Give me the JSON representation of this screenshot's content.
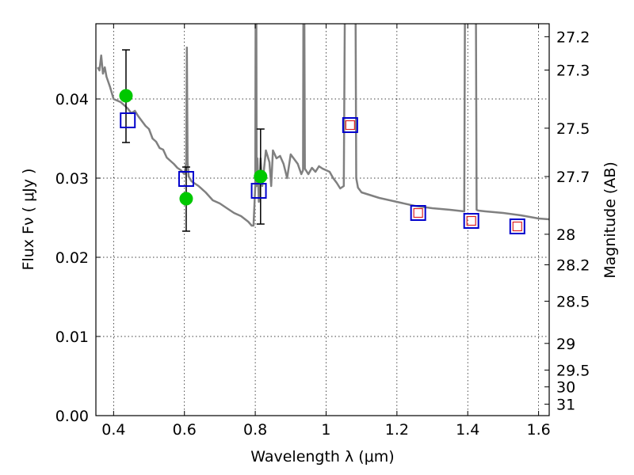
{
  "chart_data": {
    "type": "line",
    "xlabel": "Wavelength  λ (μm)",
    "ylabel": "Flux  Fν  ( μJy )",
    "y2label": "Magnitude (AB)",
    "xlim": [
      0.35,
      1.63
    ],
    "ylim": [
      0.0,
      0.0495
    ],
    "grid": true,
    "x_ticks": [
      0.4,
      0.6,
      0.8,
      1.0,
      1.2,
      1.4,
      1.6
    ],
    "x_tick_labels": [
      "0.4",
      "0.6",
      "0.8",
      "1",
      "1.2",
      "1.4",
      "1.6"
    ],
    "y_ticks": [
      0.0,
      0.01,
      0.02,
      0.03,
      0.04
    ],
    "y_tick_labels": [
      "0.00",
      "0.01",
      "0.02",
      "0.03",
      "0.04"
    ],
    "y2_ticks": [
      {
        "mag": 27.2,
        "label": "27.2"
      },
      {
        "mag": 27.3,
        "label": "27.3"
      },
      {
        "mag": 27.5,
        "label": "27.5"
      },
      {
        "mag": 27.7,
        "label": "27.7"
      },
      {
        "mag": 28.0,
        "label": "28"
      },
      {
        "mag": 28.2,
        "label": "28.2"
      },
      {
        "mag": 28.5,
        "label": "28.5"
      },
      {
        "mag": 29.0,
        "label": "29"
      },
      {
        "mag": 29.5,
        "label": "29.5"
      },
      {
        "mag": 30.0,
        "label": "30"
      },
      {
        "mag": 31.0,
        "label": "31"
      }
    ],
    "colors": {
      "spectrum": "#808080",
      "observed": "#00c800",
      "model": "#0000cc",
      "predicted": "#dd2222",
      "errorbar": "#000000"
    },
    "series": [
      {
        "name": "model-spectrum",
        "x": [
          0.355,
          0.36,
          0.365,
          0.37,
          0.375,
          0.38,
          0.39,
          0.4,
          0.41,
          0.42,
          0.43,
          0.44,
          0.45,
          0.46,
          0.47,
          0.48,
          0.49,
          0.5,
          0.51,
          0.52,
          0.53,
          0.54,
          0.55,
          0.56,
          0.57,
          0.58,
          0.59,
          0.6,
          0.605,
          0.607,
          0.609,
          0.612,
          0.62,
          0.64,
          0.66,
          0.68,
          0.7,
          0.72,
          0.74,
          0.76,
          0.78,
          0.79,
          0.795,
          0.8,
          0.802,
          0.804,
          0.806,
          0.81,
          0.815,
          0.82,
          0.83,
          0.84,
          0.845,
          0.85,
          0.855,
          0.86,
          0.87,
          0.88,
          0.89,
          0.9,
          0.92,
          0.93,
          0.935,
          0.937,
          0.94,
          0.95,
          0.96,
          0.97,
          0.98,
          0.99,
          1.0,
          1.01,
          1.02,
          1.03,
          1.04,
          1.05,
          1.058,
          1.063,
          1.068,
          1.075,
          1.08,
          1.085,
          1.09,
          1.1,
          1.15,
          1.2,
          1.25,
          1.3,
          1.35,
          1.39,
          1.395,
          1.4,
          1.42,
          1.425,
          1.43,
          1.45,
          1.5,
          1.55,
          1.6,
          1.63
        ],
        "y": [
          0.044,
          0.0436,
          0.0455,
          0.0432,
          0.044,
          0.0428,
          0.0415,
          0.04,
          0.0398,
          0.0396,
          0.0392,
          0.0388,
          0.0382,
          0.0385,
          0.0378,
          0.0372,
          0.0366,
          0.0362,
          0.035,
          0.0346,
          0.0338,
          0.0336,
          0.0326,
          0.0322,
          0.0318,
          0.0313,
          0.031,
          0.0305,
          0.032,
          0.0465,
          0.032,
          0.0302,
          0.0296,
          0.029,
          0.0282,
          0.0272,
          0.0268,
          0.0262,
          0.0256,
          0.0252,
          0.0245,
          0.024,
          0.024,
          0.029,
          0.072,
          0.029,
          0.0325,
          0.027,
          0.0325,
          0.029,
          0.0335,
          0.032,
          0.029,
          0.0335,
          0.033,
          0.0325,
          0.0328,
          0.0318,
          0.03,
          0.033,
          0.0318,
          0.0305,
          0.031,
          0.072,
          0.0312,
          0.0305,
          0.0313,
          0.0308,
          0.0315,
          0.0312,
          0.031,
          0.0308,
          0.03,
          0.0294,
          0.0287,
          0.029,
          0.089,
          0.09,
          0.0895,
          0.089,
          0.088,
          0.03,
          0.0288,
          0.0282,
          0.0275,
          0.027,
          0.0265,
          0.0262,
          0.026,
          0.0258,
          0.09,
          0.0905,
          0.09,
          0.026,
          0.0259,
          0.0258,
          0.0256,
          0.0253,
          0.0249,
          0.0248
        ]
      },
      {
        "name": "observed-photometry",
        "marker": "circle",
        "x": [
          0.435,
          0.605,
          0.815
        ],
        "y": [
          0.0404,
          0.0274,
          0.0302
        ],
        "err": [
          [
            0.0345,
            0.0462
          ],
          [
            0.0233,
            0.0314
          ],
          [
            0.0242,
            0.0362
          ]
        ]
      },
      {
        "name": "model-photometry",
        "marker": "square",
        "x": [
          0.44,
          0.605,
          0.81,
          1.068,
          1.26,
          1.41,
          1.54
        ],
        "y": [
          0.0373,
          0.0299,
          0.0284,
          0.0367,
          0.0256,
          0.0246,
          0.0239
        ]
      },
      {
        "name": "predicted-photometry",
        "marker": "small-square",
        "x": [
          1.068,
          1.26,
          1.41,
          1.54
        ],
        "y": [
          0.0367,
          0.0256,
          0.0246,
          0.0239
        ]
      }
    ]
  }
}
